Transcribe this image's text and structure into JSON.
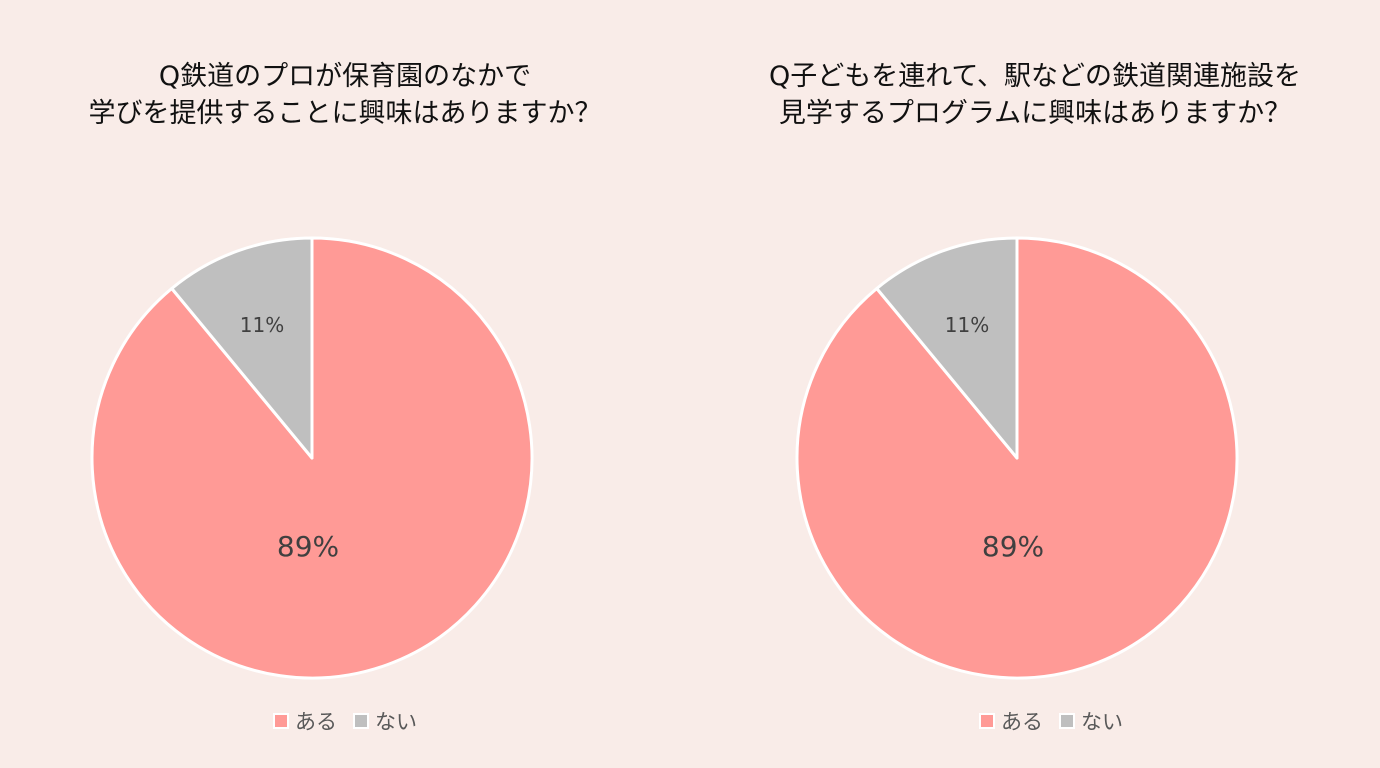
{
  "colors": {
    "background": "#F9ECE8",
    "aru": "#FF9A96",
    "nai": "#BFBFBF",
    "slice_border": "#FFFFFF",
    "label_text": "#404040",
    "legend_text": "#595959"
  },
  "charts": [
    {
      "title_lines": [
        "Q鉄道のプロが保育園のなかで",
        "学びを提供することに興味はありますか？"
      ],
      "slices": [
        {
          "label": "ある",
          "percent_label": "89%"
        },
        {
          "label": "ない",
          "percent_label": "11%"
        }
      ],
      "legend": [
        {
          "label": "ある"
        },
        {
          "label": "ない"
        }
      ]
    },
    {
      "title_lines": [
        "Q子どもを連れて、駅などの鉄道関連施設を",
        "見学するプログラムに興味はありますか？"
      ],
      "slices": [
        {
          "label": "ある",
          "percent_label": "89%"
        },
        {
          "label": "ない",
          "percent_label": "11%"
        }
      ],
      "legend": [
        {
          "label": "ある"
        },
        {
          "label": "ない"
        }
      ]
    }
  ],
  "chart_data": [
    {
      "type": "pie",
      "title": "Q鉄道のプロが保育園のなかで学びを提供することに興味はありますか？",
      "categories": [
        "ある",
        "ない"
      ],
      "values": [
        89,
        11
      ],
      "unit": "%",
      "legend_position": "bottom",
      "colors": [
        "#FF9A96",
        "#BFBFBF"
      ]
    },
    {
      "type": "pie",
      "title": "Q子どもを連れて、駅などの鉄道関連施設を見学するプログラムに興味はありますか？",
      "categories": [
        "ある",
        "ない"
      ],
      "values": [
        89,
        11
      ],
      "unit": "%",
      "legend_position": "bottom",
      "colors": [
        "#FF9A96",
        "#BFBFBF"
      ]
    }
  ]
}
